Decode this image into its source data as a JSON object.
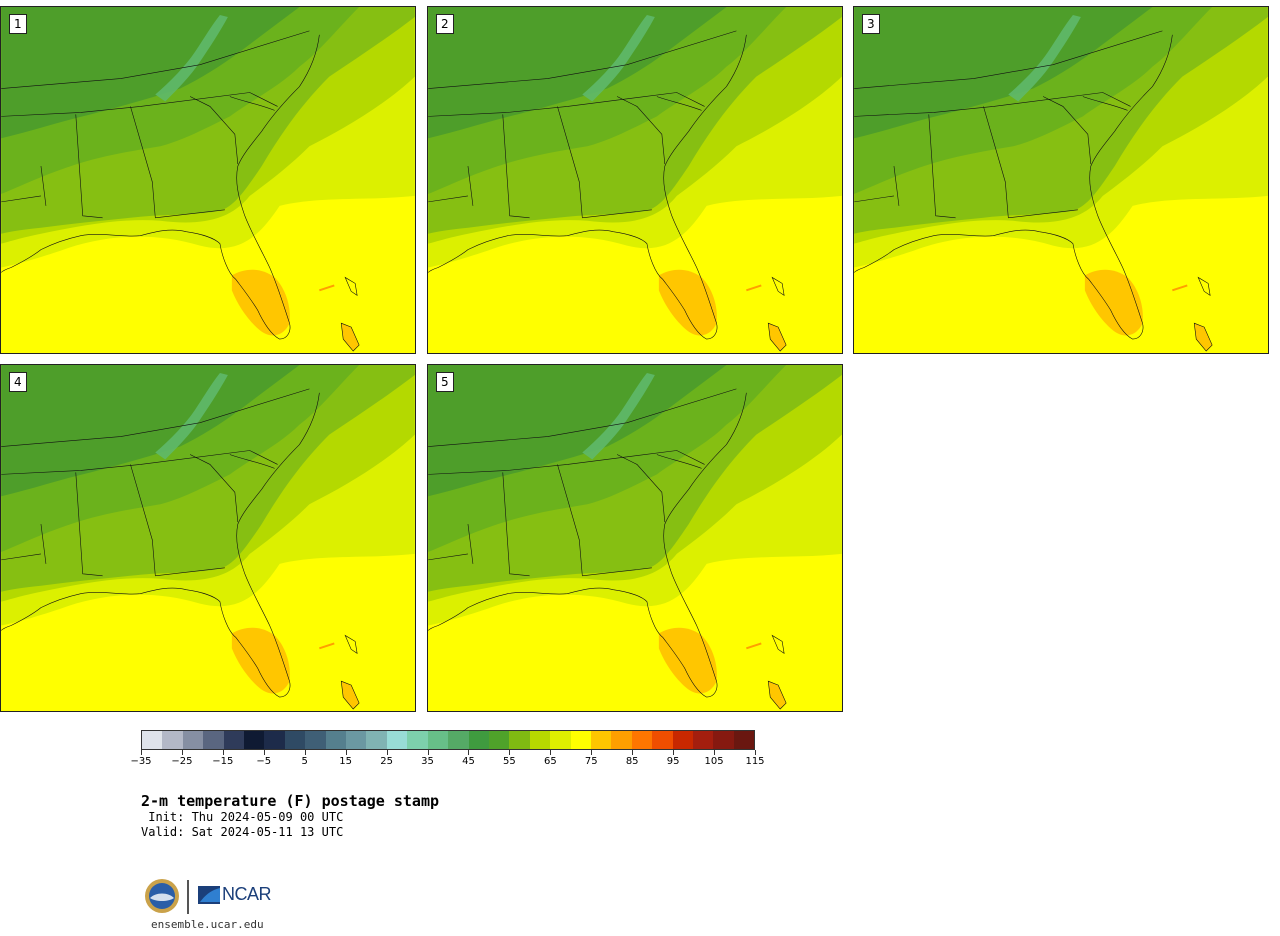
{
  "panels": [
    {
      "label": "1"
    },
    {
      "label": "2"
    },
    {
      "label": "3"
    },
    {
      "label": "4"
    },
    {
      "label": "5"
    }
  ],
  "colorbar": {
    "colors": [
      "#dfe3ea",
      "#b3b8c7",
      "#868fa3",
      "#5a6680",
      "#2f3b5a",
      "#0f1a33",
      "#1d2b4a",
      "#2f4a64",
      "#3f5f76",
      "#557f8e",
      "#6b98a2",
      "#80b3b3",
      "#98dcd6",
      "#7dd0ac",
      "#67bf88",
      "#55aa66",
      "#3f9b3f",
      "#4fa22a",
      "#7fba12",
      "#b7d900",
      "#dfef00",
      "#ffff00",
      "#ffc600",
      "#ff9f00",
      "#ff7600",
      "#f04e00",
      "#c82800",
      "#a41e0e",
      "#861910",
      "#6a1710"
    ],
    "tick_labels": [
      "−35",
      "−25",
      "−15",
      "−5",
      "5",
      "15",
      "25",
      "35",
      "45",
      "55",
      "65",
      "75",
      "85",
      "95",
      "105",
      "115"
    ]
  },
  "title": "2-m temperature (F) postage stamp",
  "init": " Init: Thu 2024-05-09 00 UTC",
  "valid": "Valid: Sat 2024-05-11 13 UTC",
  "footer": {
    "org_logo_text": "NCAR",
    "nsf_logo_text": "NSF",
    "site": "ensemble.ucar.edu"
  },
  "map_colors": {
    "deep_green": "#4e9e2a",
    "mid_green": "#6bb21c",
    "light_green": "#86bf12",
    "yellow_green": "#b4d900",
    "pale_yellow": "#dcf000",
    "yellow": "#ffff00",
    "orange": "#ffc600",
    "mountain_teal": "#5fb86a"
  }
}
